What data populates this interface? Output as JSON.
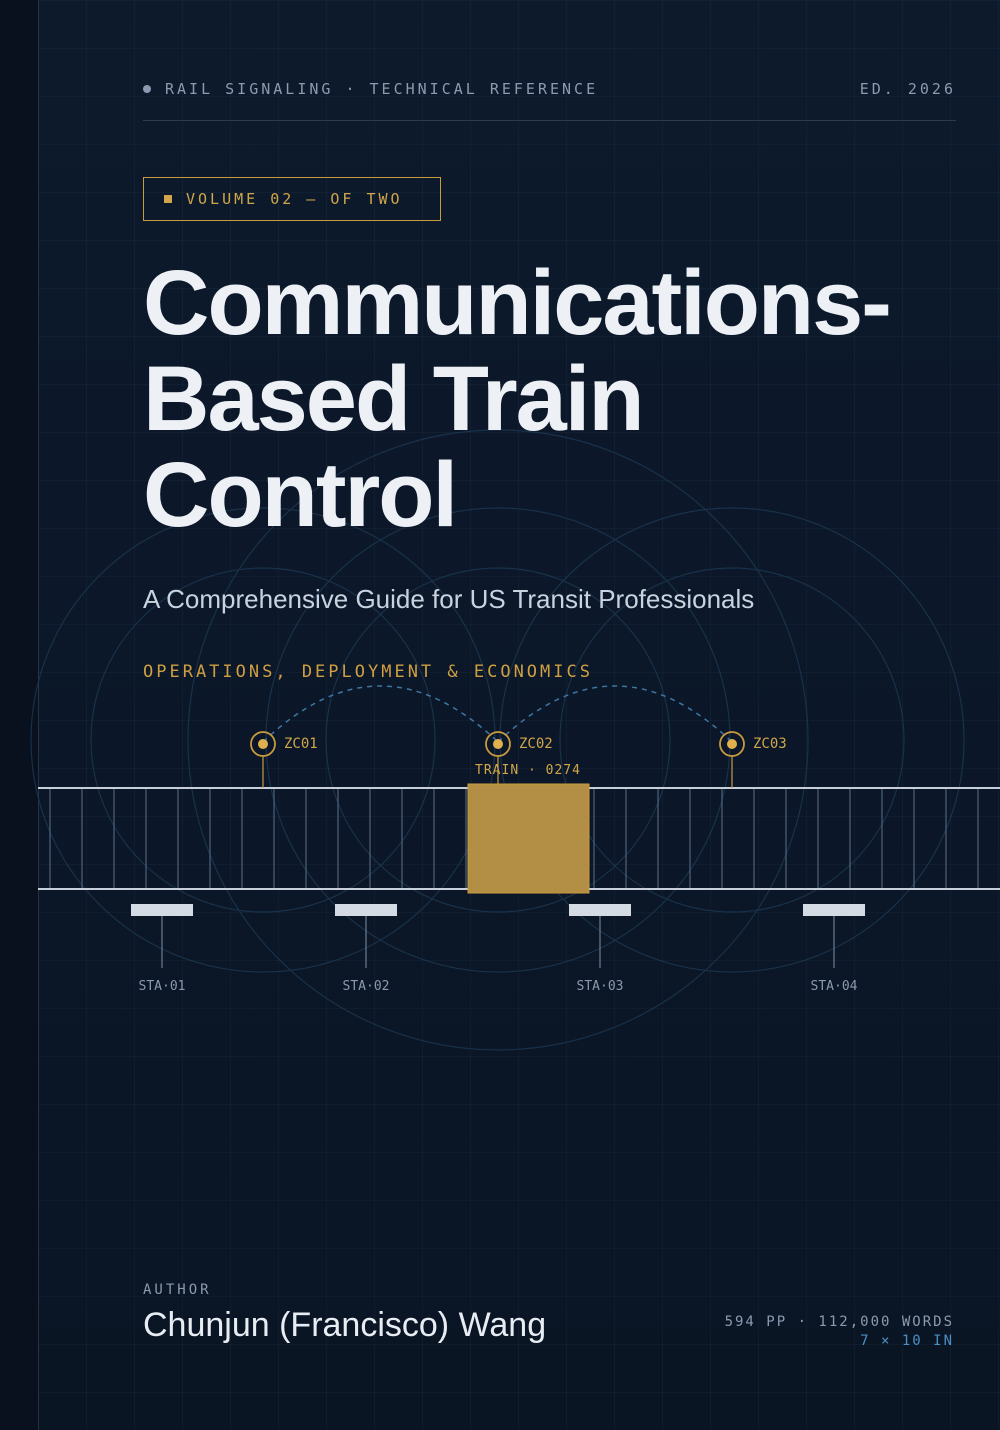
{
  "header": {
    "left": "RAIL SIGNALING · TECHNICAL REFERENCE",
    "right": "ED. 2026"
  },
  "volume_tag": "VOLUME 02 — OF TWO",
  "title_lines": [
    "Communications-",
    "Based Train",
    "Control"
  ],
  "subtitle": "A Comprehensive Guide for US Transit Professionals",
  "tagline": "OPERATIONS, DEPLOYMENT & ECONOMICS",
  "diagram": {
    "zone_controllers": [
      "ZC01",
      "ZC02",
      "ZC03"
    ],
    "train_label": "TRAIN · 0274",
    "stations": [
      "STA·01",
      "STA·02",
      "STA·03",
      "STA·04"
    ]
  },
  "author": {
    "label": "AUTHOR",
    "name": "Chunjun (Francisco) Wang"
  },
  "specs": {
    "pages_words": "594 PP · 112,000 WORDS",
    "trim_size": "7 × 10 IN"
  },
  "colors": {
    "background": "#0b1728",
    "accent_gold": "#c99b3e",
    "train_fill": "#b38f45",
    "title_text": "#edf1f6",
    "muted_text": "#8a9ab0",
    "blue_accent": "#4b8ec4"
  }
}
